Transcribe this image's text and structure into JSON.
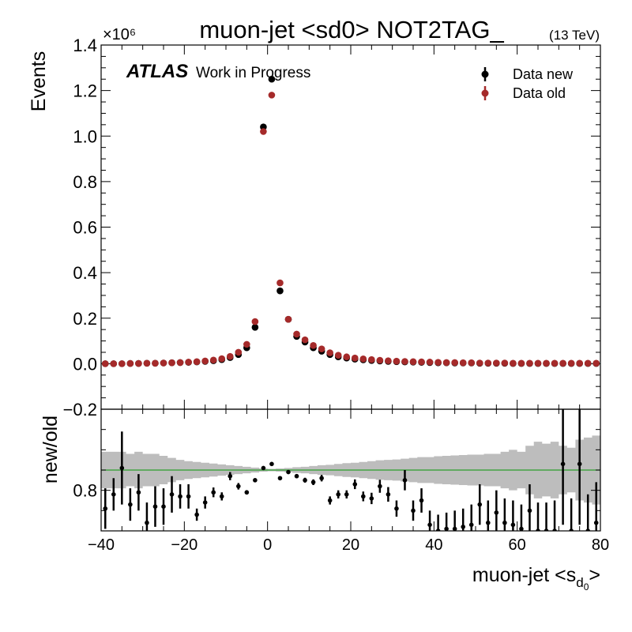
{
  "title": "muon-jet <sd0> NOT2TAG_",
  "energy_label": "(13 TeV)",
  "atlas_label": "ATLAS",
  "atlas_sub": "Work in Progress",
  "colors": {
    "new": "#000000",
    "old": "#a52a2a",
    "band": "#bdbdbd",
    "ratio_line": "#2ca02c"
  },
  "chart_data": [
    {
      "type": "scatter",
      "name": "main",
      "ylabel": "Events",
      "y_multiplier_label": "×10⁶",
      "xlim": [
        -40,
        80
      ],
      "ylim": [
        -0.2,
        1.4
      ],
      "yticks": [
        -0.2,
        0.0,
        0.2,
        0.4,
        0.6,
        0.8,
        1.0,
        1.2,
        1.4
      ],
      "ytick_labels": [
        "−0.2",
        "0.0",
        "0.2",
        "0.4",
        "0.6",
        "0.8",
        "1.0",
        "1.2",
        "1.4"
      ],
      "legend": [
        "Data new",
        "Data old"
      ],
      "legend_position": "top-right",
      "x": [
        -39,
        -37,
        -35,
        -33,
        -31,
        -29,
        -27,
        -25,
        -23,
        -21,
        -19,
        -17,
        -15,
        -13,
        -11,
        -9,
        -7,
        -5,
        -3,
        -1,
        1,
        3,
        5,
        7,
        9,
        11,
        13,
        15,
        17,
        19,
        21,
        23,
        25,
        27,
        29,
        31,
        33,
        35,
        37,
        39,
        41,
        43,
        45,
        47,
        49,
        51,
        53,
        55,
        57,
        59,
        61,
        63,
        65,
        67,
        69,
        71,
        73,
        75,
        77,
        79
      ],
      "series": [
        {
          "name": "Data new",
          "values": [
            0.0,
            0.0,
            0.0,
            0.001,
            0.001,
            0.002,
            0.002,
            0.003,
            0.004,
            0.005,
            0.006,
            0.008,
            0.01,
            0.013,
            0.018,
            0.027,
            0.04,
            0.07,
            0.16,
            1.04,
            1.25,
            0.32,
            0.195,
            0.12,
            0.095,
            0.07,
            0.055,
            0.04,
            0.03,
            0.025,
            0.02,
            0.017,
            0.014,
            0.012,
            0.01,
            0.009,
            0.008,
            0.007,
            0.006,
            0.005,
            0.004,
            0.004,
            0.003,
            0.003,
            0.003,
            0.002,
            0.002,
            0.002,
            0.002,
            0.001,
            0.001,
            0.001,
            0.001,
            0.001,
            0.001,
            0.001,
            0.001,
            0.001,
            0.001,
            0.001
          ]
        },
        {
          "name": "Data old",
          "values": [
            0.0,
            0.0,
            0.0,
            0.001,
            0.001,
            0.002,
            0.002,
            0.003,
            0.004,
            0.005,
            0.007,
            0.009,
            0.012,
            0.016,
            0.022,
            0.032,
            0.05,
            0.085,
            0.185,
            1.02,
            1.18,
            0.355,
            0.195,
            0.13,
            0.105,
            0.08,
            0.065,
            0.048,
            0.037,
            0.03,
            0.025,
            0.021,
            0.018,
            0.015,
            0.013,
            0.011,
            0.01,
            0.009,
            0.008,
            0.007,
            0.006,
            0.005,
            0.005,
            0.004,
            0.004,
            0.003,
            0.003,
            0.003,
            0.003,
            0.002,
            0.002,
            0.002,
            0.002,
            0.002,
            0.002,
            0.002,
            0.002,
            0.002,
            0.002,
            0.002
          ]
        }
      ]
    },
    {
      "type": "scatter",
      "name": "ratio",
      "xlabel": "muon-jet <s",
      "xlabel_sub": "d",
      "xlabel_subsub": "0",
      "xlabel_end": ">",
      "ylabel": "new/old",
      "xlim": [
        -40,
        80
      ],
      "ylim": [
        0.7,
        1.0
      ],
      "yticks": [
        0.8
      ],
      "ytick_labels": [
        "0.8"
      ],
      "xticks": [
        -40,
        -20,
        0,
        20,
        40,
        60,
        80
      ],
      "xtick_labels": [
        "−40",
        "−20",
        "0",
        "20",
        "40",
        "60",
        "80"
      ],
      "reference_line": 0.85,
      "x": [
        -39,
        -37,
        -35,
        -33,
        -31,
        -29,
        -27,
        -25,
        -23,
        -21,
        -19,
        -17,
        -15,
        -13,
        -11,
        -9,
        -7,
        -5,
        -3,
        -1,
        1,
        3,
        5,
        7,
        9,
        11,
        13,
        15,
        17,
        19,
        21,
        23,
        25,
        27,
        29,
        31,
        33,
        35,
        37,
        39,
        41,
        43,
        45,
        47,
        49,
        51,
        53,
        55,
        57,
        59,
        61,
        63,
        65,
        67,
        69,
        71,
        73,
        75,
        77,
        79
      ],
      "values": [
        0.755,
        0.79,
        0.855,
        0.765,
        0.795,
        0.72,
        0.76,
        0.76,
        0.79,
        0.785,
        0.785,
        0.74,
        0.77,
        0.795,
        0.785,
        0.835,
        0.81,
        0.795,
        0.825,
        0.855,
        0.865,
        0.83,
        0.845,
        0.835,
        0.825,
        0.82,
        0.83,
        0.775,
        0.79,
        0.79,
        0.815,
        0.785,
        0.78,
        0.81,
        0.79,
        0.755,
        0.825,
        0.75,
        0.775,
        0.715,
        0.7,
        0.705,
        0.705,
        0.71,
        0.715,
        0.765,
        0.72,
        0.745,
        0.72,
        0.715,
        0.705,
        0.75,
        0.7,
        0.7,
        0.7,
        0.865,
        0.7,
        0.865,
        0.7,
        0.72
      ],
      "errors": [
        0.05,
        0.04,
        0.09,
        0.04,
        0.045,
        0.05,
        0.05,
        0.045,
        0.045,
        0.03,
        0.03,
        0.015,
        0.015,
        0.012,
        0.01,
        0.01,
        0.008,
        0.005,
        0.004,
        0.002,
        0.002,
        0.003,
        0.004,
        0.005,
        0.006,
        0.007,
        0.008,
        0.01,
        0.01,
        0.01,
        0.012,
        0.012,
        0.014,
        0.016,
        0.018,
        0.02,
        0.025,
        0.025,
        0.03,
        0.035,
        0.04,
        0.04,
        0.045,
        0.045,
        0.05,
        0.05,
        0.055,
        0.055,
        0.06,
        0.06,
        0.06,
        0.065,
        0.07,
        0.07,
        0.075,
        0.15,
        0.08,
        0.15,
        0.09,
        0.1
      ],
      "band_halfwidth": [
        0.045,
        0.045,
        0.045,
        0.04,
        0.045,
        0.04,
        0.04,
        0.035,
        0.03,
        0.025,
        0.022,
        0.02,
        0.018,
        0.016,
        0.014,
        0.012,
        0.01,
        0.008,
        0.006,
        0.004,
        0.003,
        0.004,
        0.005,
        0.007,
        0.008,
        0.01,
        0.012,
        0.013,
        0.015,
        0.017,
        0.018,
        0.02,
        0.022,
        0.024,
        0.025,
        0.026,
        0.028,
        0.03,
        0.032,
        0.032,
        0.034,
        0.035,
        0.036,
        0.037,
        0.038,
        0.038,
        0.04,
        0.04,
        0.045,
        0.05,
        0.045,
        0.06,
        0.07,
        0.065,
        0.07,
        0.06,
        0.055,
        0.075,
        0.08,
        0.085
      ]
    }
  ]
}
